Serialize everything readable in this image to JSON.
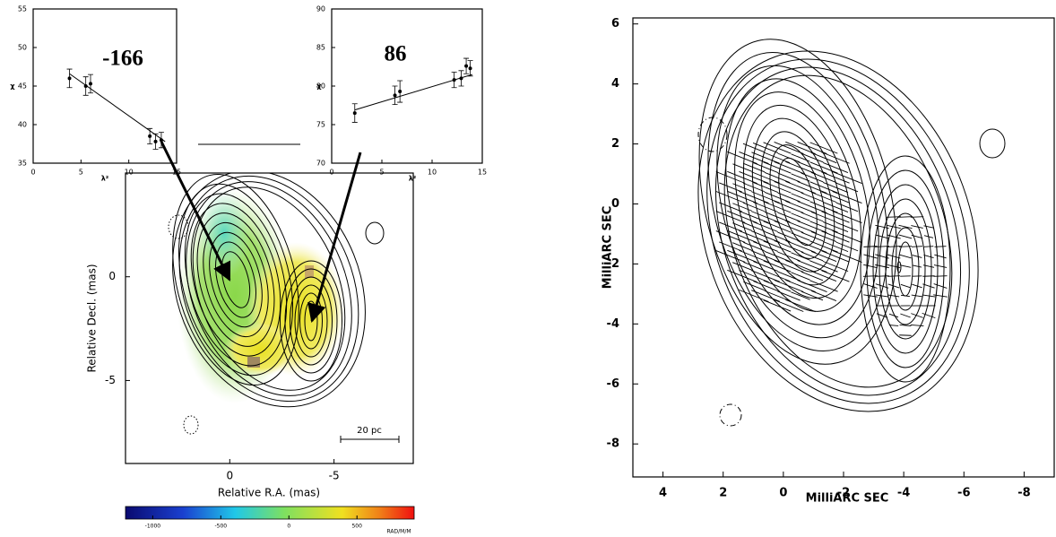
{
  "chart_data": [
    {
      "type": "scatter",
      "title": "-166",
      "xlabel": "λ²",
      "ylabel": "χ",
      "x": [
        3.8,
        5.5,
        6.0,
        12.2,
        12.8,
        13.4
      ],
      "values": [
        46.0,
        45.0,
        45.3,
        38.5,
        37.8,
        38.0
      ],
      "errors": [
        1.2,
        1.2,
        1.2,
        1.0,
        1.0,
        1.0
      ],
      "fit": {
        "x": [
          3.8,
          13.8
        ],
        "values": [
          46.6,
          37.8
        ]
      },
      "xlim": [
        0,
        15
      ],
      "ylim": [
        35,
        55
      ],
      "xticks": [
        0,
        5,
        10,
        15
      ],
      "yticks": [
        35,
        40,
        45,
        50,
        55
      ]
    },
    {
      "type": "scatter",
      "title": "86",
      "xlabel": "λ²",
      "ylabel": "χ",
      "x": [
        2.3,
        6.3,
        6.8,
        12.2,
        12.9,
        13.4,
        13.8
      ],
      "values": [
        76.5,
        78.8,
        79.3,
        80.8,
        81.0,
        82.6,
        82.3
      ],
      "errors": [
        1.2,
        1.2,
        1.4,
        1.0,
        1.0,
        1.0,
        1.0
      ],
      "fit": {
        "x": [
          2.3,
          14.0
        ],
        "values": [
          76.9,
          81.5
        ]
      },
      "xlim": [
        0,
        15
      ],
      "ylim": [
        70,
        90
      ],
      "xticks": [
        0,
        5,
        10,
        15
      ],
      "yticks": [
        70,
        75,
        80,
        85,
        90
      ]
    },
    {
      "type": "image",
      "xlabel": "Relative R.A. (mas)",
      "ylabel": "Relative Decl. (mas)",
      "xlim": [
        5,
        -8.8
      ],
      "ylim": [
        -9,
        5
      ],
      "xticks": [
        0,
        -5
      ],
      "yticks": [
        0,
        -5
      ],
      "scale_bar": "20 pc",
      "colorbar": {
        "label": "RAD/M/M",
        "lim": [
          -1200,
          920
        ],
        "ticks": [
          -1000,
          -500,
          0,
          500
        ]
      }
    },
    {
      "type": "contour",
      "xlabel": "MilliARC SEC",
      "ylabel": "MilliARC SEC",
      "xlim": [
        5,
        -9
      ],
      "ylim": [
        -9.1,
        6.2
      ],
      "xticks": [
        4,
        2,
        0,
        -2,
        -4,
        -6,
        -8
      ],
      "yticks": [
        6,
        4,
        2,
        0,
        -2,
        -4,
        -6,
        -8
      ]
    }
  ]
}
